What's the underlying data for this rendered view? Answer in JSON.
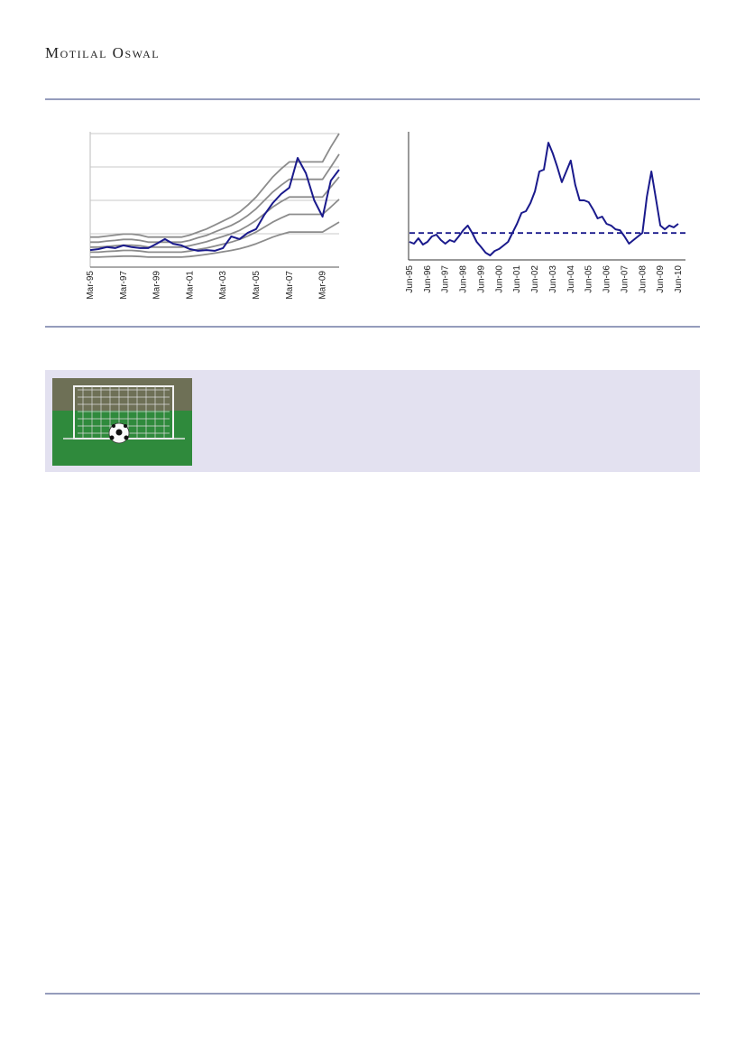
{
  "header": {
    "brand": "Motilal Oswal"
  },
  "chart_data": [
    {
      "type": "line",
      "categories": [
        "Mar-95",
        null,
        null,
        null,
        "Mar-97",
        null,
        null,
        null,
        "Mar-99",
        null,
        null,
        null,
        "Mar-01",
        null,
        null,
        null,
        "Mar-03",
        null,
        null,
        null,
        "Mar-05",
        null,
        null,
        null,
        "Mar-07",
        null,
        null,
        null,
        "Mar-09",
        null,
        null
      ],
      "ylim": [
        0,
        4
      ],
      "gridlines": [
        1,
        2,
        3,
        4
      ],
      "series": [
        {
          "color": "#8c8c8c",
          "values": [
            0.3,
            0.3,
            0.31,
            0.32,
            0.33,
            0.33,
            0.32,
            0.3,
            0.3,
            0.3,
            0.3,
            0.3,
            0.32,
            0.35,
            0.38,
            0.42,
            0.46,
            0.5,
            0.55,
            0.62,
            0.7,
            0.8,
            0.9,
            0.98,
            1.05,
            1.05,
            1.05,
            1.05,
            1.05,
            1.2,
            1.35
          ]
        },
        {
          "color": "#8c8c8c",
          "values": [
            0.45,
            0.45,
            0.47,
            0.48,
            0.5,
            0.5,
            0.48,
            0.45,
            0.45,
            0.45,
            0.45,
            0.45,
            0.48,
            0.53,
            0.57,
            0.63,
            0.69,
            0.75,
            0.83,
            0.93,
            1.05,
            1.2,
            1.35,
            1.47,
            1.58,
            1.58,
            1.58,
            1.58,
            1.58,
            1.8,
            2.03
          ]
        },
        {
          "color": "#8c8c8c",
          "values": [
            0.6,
            0.6,
            0.62,
            0.64,
            0.66,
            0.66,
            0.64,
            0.6,
            0.6,
            0.6,
            0.6,
            0.6,
            0.64,
            0.7,
            0.76,
            0.84,
            0.92,
            1.0,
            1.1,
            1.24,
            1.4,
            1.6,
            1.8,
            1.96,
            2.1,
            2.1,
            2.1,
            2.1,
            2.1,
            2.4,
            2.7
          ]
        },
        {
          "color": "#8c8c8c",
          "values": [
            0.75,
            0.75,
            0.78,
            0.8,
            0.83,
            0.83,
            0.8,
            0.75,
            0.75,
            0.75,
            0.75,
            0.75,
            0.8,
            0.88,
            0.95,
            1.05,
            1.15,
            1.25,
            1.38,
            1.55,
            1.75,
            2.0,
            2.25,
            2.45,
            2.63,
            2.63,
            2.63,
            2.63,
            2.63,
            3.0,
            3.38
          ]
        },
        {
          "color": "#8c8c8c",
          "values": [
            0.9,
            0.9,
            0.93,
            0.96,
            0.99,
            0.99,
            0.96,
            0.9,
            0.9,
            0.9,
            0.9,
            0.9,
            0.96,
            1.05,
            1.14,
            1.26,
            1.38,
            1.5,
            1.65,
            1.86,
            2.1,
            2.4,
            2.7,
            2.94,
            3.15,
            3.15,
            3.15,
            3.15,
            3.15,
            3.6,
            4.0
          ]
        },
        {
          "color": "#1a1a8c",
          "values": [
            0.51,
            0.54,
            0.6,
            0.57,
            0.65,
            0.6,
            0.57,
            0.57,
            0.7,
            0.84,
            0.7,
            0.65,
            0.54,
            0.49,
            0.51,
            0.49,
            0.57,
            0.92,
            0.84,
            1.03,
            1.14,
            1.57,
            1.92,
            2.19,
            2.38,
            3.27,
            2.81,
            2.0,
            1.51,
            2.59,
            2.92
          ]
        }
      ]
    },
    {
      "type": "line",
      "categories": [
        "Jun-95",
        null,
        null,
        null,
        "Jun-96",
        null,
        null,
        null,
        "Jun-97",
        null,
        null,
        null,
        "Jun-98",
        null,
        null,
        null,
        "Jun-99",
        null,
        null,
        null,
        "Jun-00",
        null,
        null,
        null,
        "Jun-01",
        null,
        null,
        null,
        "Jun-02",
        null,
        null,
        null,
        "Jun-03",
        null,
        null,
        null,
        "Jun-04",
        null,
        null,
        null,
        "Jun-05",
        null,
        null,
        null,
        "Jun-06",
        null,
        null,
        null,
        "Jun-07",
        null,
        null,
        null,
        "Jun-08",
        null,
        null,
        null,
        "Jun-09",
        null,
        null,
        null,
        "Jun-10"
      ],
      "ylim": [
        0,
        10
      ],
      "average": 2.1,
      "average_color": "#1a1a8c",
      "series": [
        {
          "color": "#1a1a8c",
          "values": [
            1.41,
            1.27,
            1.69,
            1.2,
            1.41,
            1.83,
            1.97,
            1.55,
            1.27,
            1.55,
            1.41,
            1.83,
            2.32,
            2.68,
            2.11,
            1.41,
            0.99,
            0.56,
            0.35,
            0.7,
            0.85,
            1.13,
            1.41,
            2.11,
            2.82,
            3.66,
            3.8,
            4.44,
            5.35,
            6.9,
            7.04,
            9.15,
            8.31,
            7.25,
            6.06,
            6.9,
            7.75,
            5.85,
            4.65,
            4.65,
            4.51,
            3.94,
            3.24,
            3.38,
            2.82,
            2.68,
            2.39,
            2.32,
            1.83,
            1.27,
            1.55,
            1.83,
            2.11,
            4.93,
            6.9,
            4.79,
            2.68,
            2.39,
            2.68,
            2.54,
            2.82
          ]
        }
      ]
    }
  ]
}
